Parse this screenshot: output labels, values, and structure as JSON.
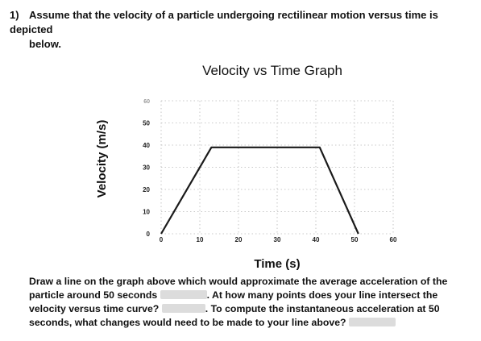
{
  "question": {
    "number": "1)",
    "text_line1": "Assume that the velocity of a particle undergoing rectilinear motion versus time is depicted",
    "text_line2": "below."
  },
  "chart_data": {
    "type": "line",
    "title": "Velocity vs Time Graph",
    "xlabel": "Time (s)",
    "ylabel": "Velocity (m/s)",
    "x_ticks": [
      0,
      10,
      20,
      30,
      40,
      50,
      60
    ],
    "y_ticks": [
      0,
      10,
      20,
      30,
      40,
      50,
      60
    ],
    "xlim": [
      0,
      60
    ],
    "ylim": [
      0,
      60
    ],
    "grid": true,
    "series": [
      {
        "x": [
          0,
          13,
          41,
          51
        ],
        "y": [
          0,
          39,
          39,
          0
        ]
      }
    ]
  },
  "instructions": {
    "part1": "Draw a line on the graph above which would approximate the average acceleration of the particle around 50 seconds",
    "part2": ". At how many points does your line intersect the velocity versus time curve?",
    "part3": ". To compute the instantaneous acceleration at 50 seconds, what changes would need to be made to your line above?"
  },
  "colors": {
    "line": "#1a1a1a",
    "grid": "#b8b8b8",
    "blank": "#dcdcdc"
  }
}
